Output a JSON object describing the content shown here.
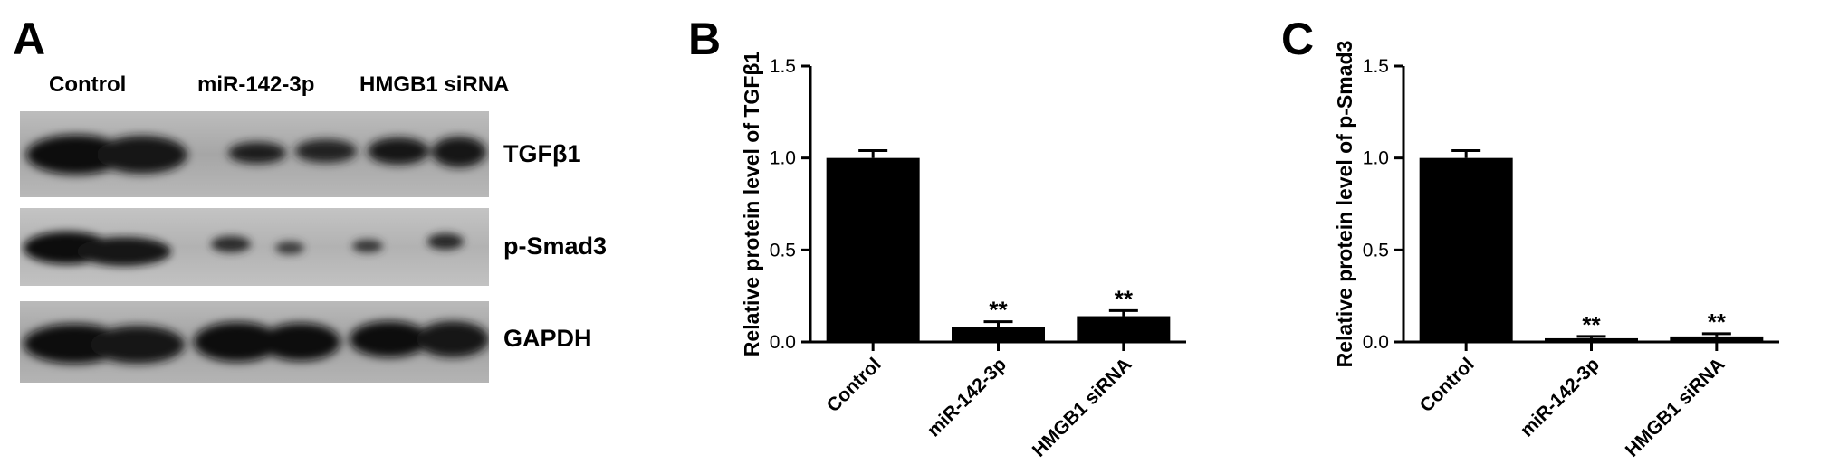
{
  "panels": {
    "a_letter": "A",
    "b_letter": "B",
    "c_letter": "C"
  },
  "blot": {
    "columns": [
      "Control",
      "miR-142-3p",
      "HMGB1 siRNA"
    ],
    "bands": [
      "TGFβ1",
      "p-Smad3",
      "GAPDH"
    ]
  },
  "chart_data": [
    {
      "type": "bar",
      "title": "",
      "xlabel": "",
      "ylabel": "Relative protein level of TGFβ1",
      "categories": [
        "Control",
        "miR-142-3p",
        "HMGB1 siRNA"
      ],
      "values": [
        1.0,
        0.08,
        0.14
      ],
      "errors": [
        0.04,
        0.03,
        0.03
      ],
      "annotations": [
        "",
        "**",
        "**"
      ],
      "ylim": [
        0,
        1.5
      ],
      "yticks": [
        "0.0",
        "0.5",
        "1.0",
        "1.5"
      ],
      "grid": false,
      "bar_color": "#000000"
    },
    {
      "type": "bar",
      "title": "",
      "xlabel": "",
      "ylabel": "Relative protein level of p-Smad3",
      "categories": [
        "Control",
        "miR-142-3p",
        "HMGB1 siRNA"
      ],
      "values": [
        1.0,
        0.02,
        0.03
      ],
      "errors": [
        0.04,
        0.01,
        0.015
      ],
      "annotations": [
        "",
        "**",
        "**"
      ],
      "ylim": [
        0,
        1.5
      ],
      "yticks": [
        "0.0",
        "0.5",
        "1.0",
        "1.5"
      ],
      "grid": false,
      "bar_color": "#000000"
    }
  ]
}
